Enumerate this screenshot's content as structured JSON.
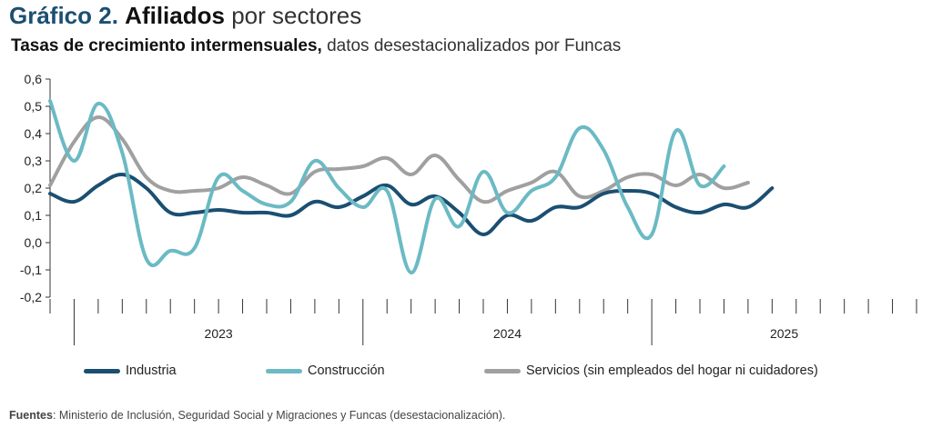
{
  "header": {
    "title_num": "Gráfico 2.",
    "title_bold": "Afiliados",
    "title_rest": "por sectores",
    "subtitle_bold": "Tasas de crecimiento intermensuales,",
    "subtitle_rest": "datos desestacionalizados por Funcas"
  },
  "footer": {
    "source_label": "Fuentes",
    "source_text": ": Ministerio de Inclusión, Seguridad Social y Migraciones y Funcas (desestacionalización)."
  },
  "chart_data": {
    "type": "line",
    "ylim": [
      -0.2,
      0.6
    ],
    "yticks": [
      "0,6",
      "0,5",
      "0,4",
      "0,3",
      "0,2",
      "0,1",
      "0,0",
      "-0,1",
      "-0,2"
    ],
    "ytick_values": [
      0.6,
      0.5,
      0.4,
      0.3,
      0.2,
      0.1,
      0.0,
      -0.1,
      -0.2
    ],
    "x": [
      "2022-12",
      "2023-01",
      "2023-02",
      "2023-03",
      "2023-04",
      "2023-05",
      "2023-06",
      "2023-07",
      "2023-08",
      "2023-09",
      "2023-10",
      "2023-11",
      "2023-12",
      "2024-01",
      "2024-02",
      "2024-03",
      "2024-04",
      "2024-05",
      "2024-06",
      "2024-07",
      "2024-08",
      "2024-09",
      "2024-10",
      "2024-11",
      "2024-12",
      "2025-01",
      "2025-02",
      "2025-03",
      "2025-04",
      "2025-05",
      "2025-06",
      "2025-07",
      "2025-08",
      "2025-09",
      "2025-10",
      "2025-11",
      "2025-12"
    ],
    "year_labels": [
      "2023",
      "2024",
      "2025"
    ],
    "grid": false,
    "legend_position": "bottom",
    "series": [
      {
        "name": "Industria",
        "color": "#1b4f72",
        "values": [
          0.18,
          0.15,
          0.21,
          0.25,
          0.2,
          0.11,
          0.11,
          0.12,
          0.11,
          0.11,
          0.1,
          0.15,
          0.13,
          0.17,
          0.21,
          0.14,
          0.17,
          0.11,
          0.03,
          0.1,
          0.08,
          0.13,
          0.13,
          0.18,
          0.19,
          0.18,
          0.13,
          0.11,
          0.14,
          0.13,
          0.2,
          null,
          null,
          null,
          null,
          null,
          null
        ]
      },
      {
        "name": "Construcción",
        "color": "#6bbac4",
        "values": [
          0.52,
          0.3,
          0.51,
          0.33,
          -0.06,
          -0.03,
          -0.02,
          0.24,
          0.19,
          0.14,
          0.15,
          0.3,
          0.2,
          0.13,
          0.19,
          -0.11,
          0.16,
          0.06,
          0.26,
          0.11,
          0.19,
          0.24,
          0.42,
          0.34,
          0.13,
          0.03,
          0.41,
          0.21,
          0.28,
          null,
          null,
          null,
          null,
          null,
          null,
          null,
          null
        ]
      },
      {
        "name": "Servicios (sin empleados del hogar ni cuidadores)",
        "color": "#a0a0a0",
        "values": [
          0.21,
          0.37,
          0.46,
          0.38,
          0.24,
          0.19,
          0.19,
          0.2,
          0.24,
          0.21,
          0.18,
          0.26,
          0.27,
          0.28,
          0.31,
          0.25,
          0.32,
          0.23,
          0.15,
          0.19,
          0.22,
          0.26,
          0.17,
          0.19,
          0.24,
          0.25,
          0.21,
          0.25,
          0.2,
          0.22,
          null,
          null,
          null,
          null,
          null,
          null,
          null
        ]
      }
    ]
  }
}
